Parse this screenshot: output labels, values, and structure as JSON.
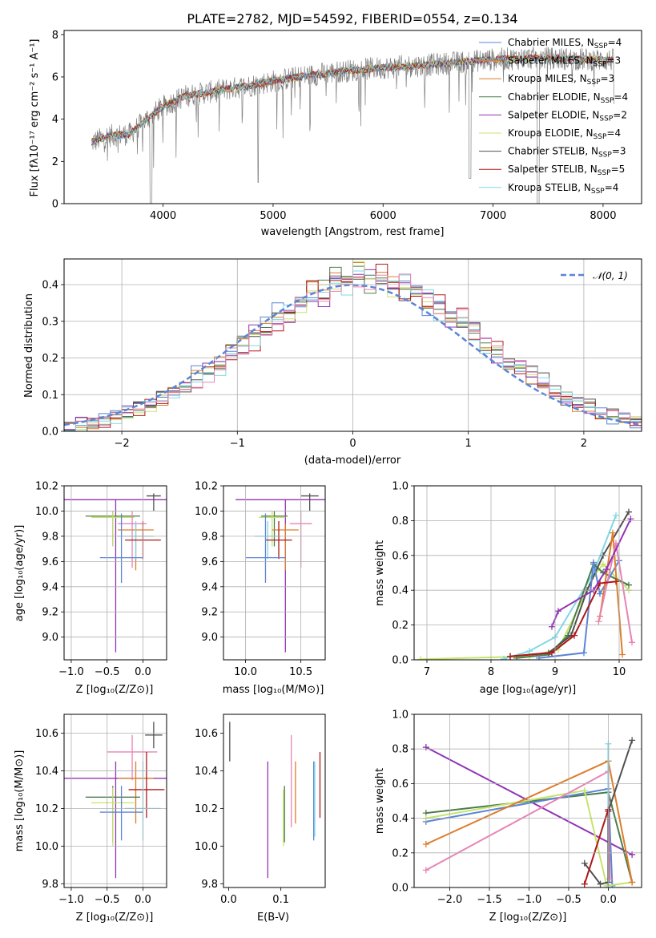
{
  "colors": {
    "blue": "#5b84d6",
    "orange": "#dd7d2c",
    "green": "#4b7d4b",
    "purple": "#9134b3",
    "yellowgreen": "#c7e36e",
    "darkgray": "#505050",
    "red": "#b01717",
    "cyan": "#7fd8e6",
    "pink": "#e783b5",
    "gray": "#808080"
  },
  "chart_data": [
    {
      "id": "spectrum",
      "type": "line",
      "title": "PLATE=2782, MJD=54592, FIBERID=0554, z=0.134",
      "xlabel": "wavelength [Angstrom, rest frame]",
      "ylabel": "Flux [fλ10⁻¹⁷ erg cm⁻² s⁻¹ A⁻¹]",
      "xlim": [
        3100,
        8350
      ],
      "ylim": [
        0,
        8.2
      ],
      "xticks": [
        "4000",
        "5000",
        "6000",
        "7000",
        "8000"
      ],
      "yticks": [
        "0",
        "2",
        "4",
        "6",
        "8"
      ],
      "legend_position": "top-right",
      "series": [
        {
          "name": "Chabrier MILES, N",
          "sub": "SSP",
          "suffix": "=4",
          "color": "blue"
        },
        {
          "name": "Salpeter MILES, N",
          "sub": "SSP",
          "suffix": "=3",
          "color": "orange"
        },
        {
          "name": "Kroupa MILES, N",
          "sub": "SSP",
          "suffix": "=3",
          "color": "orange"
        },
        {
          "name": "Chabrier ELODIE, N",
          "sub": "SSP",
          "suffix": "=4",
          "color": "green"
        },
        {
          "name": "Salpeter ELODIE, N",
          "sub": "SSP",
          "suffix": "=2",
          "color": "purple"
        },
        {
          "name": "Kroupa ELODIE, N",
          "sub": "SSP",
          "suffix": "=4",
          "color": "yellowgreen"
        },
        {
          "name": "Chabrier STELIB, N",
          "sub": "SSP",
          "suffix": "=3",
          "color": "darkgray"
        },
        {
          "name": "Salpeter STELIB, N",
          "sub": "SSP",
          "suffix": "=5",
          "color": "red"
        },
        {
          "name": "Kroupa STELIB, N",
          "sub": "SSP",
          "suffix": "=4",
          "color": "cyan"
        }
      ],
      "continuum": [
        [
          3350,
          2.9
        ],
        [
          3500,
          3.2
        ],
        [
          3700,
          3.3
        ],
        [
          3850,
          4.0
        ],
        [
          4000,
          4.6
        ],
        [
          4200,
          5.1
        ],
        [
          4500,
          5.35
        ],
        [
          4800,
          5.6
        ],
        [
          5000,
          5.8
        ],
        [
          5300,
          6.05
        ],
        [
          5600,
          6.25
        ],
        [
          5900,
          6.4
        ],
        [
          6200,
          6.5
        ],
        [
          6500,
          6.6
        ],
        [
          6800,
          6.75
        ],
        [
          7100,
          6.85
        ],
        [
          7400,
          6.9
        ],
        [
          7700,
          6.85
        ],
        [
          8000,
          6.8
        ],
        [
          8100,
          6.8
        ]
      ]
    },
    {
      "id": "residuals",
      "type": "bar",
      "xlabel": "(data-model)/error",
      "ylabel": "Normed distribution",
      "xlim": [
        -2.5,
        2.5
      ],
      "ylim": [
        0,
        0.47
      ],
      "xticks": [
        "−2",
        "−1",
        "0",
        "1",
        "2"
      ],
      "yticks": [
        "0.0",
        "0.1",
        "0.2",
        "0.3",
        "0.4"
      ],
      "legend_label": "𝒩(0, 1)",
      "legend_position": "top-right",
      "bin_width": 0.1
    },
    {
      "id": "age_vs_Z",
      "type": "scatter",
      "xlabel": "Z [log₁₀(Z/Z⊙)]",
      "ylabel": "age  [log₁₀(age/yr)]",
      "xlim": [
        -1.1,
        0.33
      ],
      "ylim": [
        8.82,
        10.2
      ],
      "xticks": [
        "−1.0",
        "−0.5",
        "0.0"
      ],
      "yticks": [
        "9.0",
        "9.2",
        "9.4",
        "9.6",
        "9.8",
        "10.0",
        "10.2"
      ],
      "points": [
        {
          "x": -0.38,
          "y": 10.09,
          "xerr": 0.72,
          "yerr": 0,
          "ylo": 8.88,
          "yhi": 10.09,
          "color": "purple"
        },
        {
          "x": 0.15,
          "y": 10.12,
          "xerr": 0.1,
          "ylo": 10.0,
          "yhi": 10.14,
          "color": "darkgray"
        },
        {
          "x": -0.42,
          "y": 9.96,
          "xerr": 0.38,
          "ylo": 9.72,
          "yhi": 10.0,
          "color": "green"
        },
        {
          "x": -0.42,
          "y": 9.95,
          "xerr": 0.3,
          "ylo": 9.72,
          "yhi": 10.0,
          "color": "yellowgreen"
        },
        {
          "x": -0.15,
          "y": 9.9,
          "xerr": 0.2,
          "ylo": 9.55,
          "yhi": 10.0,
          "color": "pink"
        },
        {
          "x": -0.1,
          "y": 9.85,
          "xerr": 0.25,
          "ylo": 9.53,
          "yhi": 9.9,
          "color": "orange"
        },
        {
          "x": -0.1,
          "y": 9.8,
          "xerr": 0.25,
          "ylo": 9.62,
          "yhi": 9.92,
          "color": "cyan"
        },
        {
          "x": 0.0,
          "y": 9.77,
          "xerr": 0.25,
          "ylo": 9.62,
          "yhi": 9.92,
          "color": "red"
        },
        {
          "x": -0.3,
          "y": 9.63,
          "xerr": 0.3,
          "ylo": 9.43,
          "yhi": 9.98,
          "color": "blue"
        }
      ]
    },
    {
      "id": "age_vs_mass",
      "type": "scatter",
      "xlabel": "mass [log₁₀(M/M⊙)]",
      "ylabel": "",
      "xlim": [
        9.8,
        10.72
      ],
      "ylim": [
        8.82,
        10.2
      ],
      "xticks": [
        "10.0",
        "10.5"
      ],
      "yticks": [
        "9.0",
        "9.2",
        "9.4",
        "9.6",
        "9.8",
        "10.0",
        "10.2"
      ],
      "points": [
        {
          "x": 10.36,
          "y": 10.09,
          "xerr": 0.45,
          "ylo": 8.88,
          "yhi": 10.09,
          "color": "purple"
        },
        {
          "x": 10.58,
          "y": 10.12,
          "xerr": 0.08,
          "ylo": 10.0,
          "yhi": 10.14,
          "color": "darkgray"
        },
        {
          "x": 10.26,
          "y": 9.96,
          "xerr": 0.12,
          "ylo": 9.72,
          "yhi": 10.0,
          "color": "green"
        },
        {
          "x": 10.24,
          "y": 9.95,
          "xerr": 0.12,
          "ylo": 9.72,
          "yhi": 10.0,
          "color": "yellowgreen"
        },
        {
          "x": 10.5,
          "y": 9.9,
          "xerr": 0.1,
          "ylo": 9.55,
          "yhi": 10.0,
          "color": "pink"
        },
        {
          "x": 10.36,
          "y": 9.85,
          "xerr": 0.12,
          "ylo": 9.53,
          "yhi": 9.9,
          "color": "orange"
        },
        {
          "x": 10.2,
          "y": 9.8,
          "xerr": 0.12,
          "ylo": 9.62,
          "yhi": 9.92,
          "color": "cyan"
        },
        {
          "x": 10.3,
          "y": 9.77,
          "xerr": 0.12,
          "ylo": 9.62,
          "yhi": 9.92,
          "color": "red"
        },
        {
          "x": 10.18,
          "y": 9.63,
          "xerr": 0.18,
          "ylo": 9.43,
          "yhi": 9.98,
          "color": "blue"
        }
      ]
    },
    {
      "id": "massweight_vs_age",
      "type": "line",
      "xlabel": "age  [log₁₀(age/yr)]",
      "ylabel": "mass weight",
      "xlim": [
        6.8,
        10.35
      ],
      "ylim": [
        0,
        1.0
      ],
      "xticks": [
        "7",
        "8",
        "9",
        "10"
      ],
      "yticks": [
        "0.0",
        "0.2",
        "0.4",
        "0.6",
        "0.8",
        "1.0"
      ],
      "series": [
        {
          "color": "yellowgreen",
          "x": [
            6.9,
            8.6,
            9.05,
            9.6,
            9.75,
            10.15
          ],
          "y": [
            0.003,
            0.02,
            0.06,
            0.48,
            0.55,
            0.4
          ]
        },
        {
          "color": "cyan",
          "x": [
            8.2,
            8.6,
            9.0,
            9.6,
            9.95
          ],
          "y": [
            0.005,
            0.05,
            0.13,
            0.5,
            0.83
          ]
        },
        {
          "color": "green",
          "x": [
            8.4,
            8.9,
            9.2,
            9.6,
            9.75,
            10.15
          ],
          "y": [
            0.01,
            0.03,
            0.14,
            0.55,
            0.5,
            0.43
          ]
        },
        {
          "color": "darkgray",
          "x": [
            8.3,
            8.9,
            9.25,
            9.5,
            9.75,
            10.15
          ],
          "y": [
            0.02,
            0.04,
            0.14,
            0.4,
            0.6,
            0.85
          ]
        },
        {
          "color": "blue",
          "x": [
            8.75,
            9.45,
            9.6,
            9.7,
            10.0
          ],
          "y": [
            0.01,
            0.04,
            0.56,
            0.38,
            0.57
          ]
        },
        {
          "color": "orange",
          "x": [
            9.7,
            9.9,
            10.05
          ],
          "y": [
            0.25,
            0.73,
            0.03
          ]
        },
        {
          "color": "pink",
          "x": [
            9.68,
            9.95,
            10.2
          ],
          "y": [
            0.22,
            0.67,
            0.1
          ]
        },
        {
          "color": "red",
          "x": [
            8.3,
            8.95,
            9.3,
            9.7,
            9.95
          ],
          "y": [
            0.02,
            0.04,
            0.14,
            0.44,
            0.45
          ]
        },
        {
          "color": "purple",
          "x": [
            8.95,
            9.05,
            9.6,
            9.8,
            10.18
          ],
          "y": [
            0.19,
            0.28,
            0.4,
            0.52,
            0.81
          ]
        }
      ]
    },
    {
      "id": "mass_vs_Z",
      "type": "scatter",
      "xlabel": "Z [log₁₀(Z/Z⊙)]",
      "ylabel": "mass [log₁₀(M/M⊙)]",
      "xlim": [
        -1.1,
        0.33
      ],
      "ylim": [
        9.78,
        10.7
      ],
      "xticks": [
        "−1.0",
        "−0.5",
        "0.0"
      ],
      "yticks": [
        "9.8",
        "10.0",
        "10.2",
        "10.4",
        "10.6"
      ],
      "points": [
        {
          "x": 0.15,
          "y": 10.59,
          "xerr": 0.12,
          "ylo": 10.52,
          "yhi": 10.66,
          "color": "darkgray"
        },
        {
          "x": -0.15,
          "y": 10.5,
          "xerr": 0.35,
          "ylo": 10.35,
          "yhi": 10.59,
          "color": "pink"
        },
        {
          "x": -0.38,
          "y": 10.36,
          "xerr": 0.72,
          "ylo": 9.83,
          "yhi": 10.45,
          "color": "purple"
        },
        {
          "x": -0.1,
          "y": 10.36,
          "xerr": 0.25,
          "ylo": 10.12,
          "yhi": 10.45,
          "color": "orange"
        },
        {
          "x": 0.05,
          "y": 10.3,
          "xerr": 0.25,
          "ylo": 10.15,
          "yhi": 10.5,
          "color": "red"
        },
        {
          "x": -0.42,
          "y": 10.26,
          "xerr": 0.38,
          "ylo": 10.02,
          "yhi": 10.32,
          "color": "green"
        },
        {
          "x": -0.42,
          "y": 10.23,
          "xerr": 0.3,
          "ylo": 10.0,
          "yhi": 10.31,
          "color": "yellowgreen"
        },
        {
          "x": 0.0,
          "y": 10.2,
          "xerr": 0.25,
          "ylo": 10.03,
          "yhi": 10.45,
          "color": "cyan"
        },
        {
          "x": -0.3,
          "y": 10.18,
          "xerr": 0.3,
          "ylo": 10.03,
          "yhi": 10.32,
          "color": "blue"
        }
      ]
    },
    {
      "id": "mass_vs_EBV",
      "type": "scatter",
      "xlabel": "E(B-V)",
      "ylabel": "",
      "xlim": [
        -0.01,
        0.185
      ],
      "ylim": [
        9.78,
        10.7
      ],
      "xticks": [
        "0.0",
        "0.1"
      ],
      "yticks": [
        "9.8",
        "10.0",
        "10.2",
        "10.4",
        "10.6"
      ],
      "points": [
        {
          "x": 0.002,
          "ylo": 10.45,
          "yhi": 10.66,
          "color": "darkgray"
        },
        {
          "x": 0.075,
          "ylo": 9.83,
          "yhi": 10.45,
          "color": "purple"
        },
        {
          "x": 0.105,
          "ylo": 10.0,
          "yhi": 10.3,
          "color": "yellowgreen"
        },
        {
          "x": 0.107,
          "ylo": 10.02,
          "yhi": 10.32,
          "color": "green"
        },
        {
          "x": 0.12,
          "ylo": 10.1,
          "yhi": 10.59,
          "color": "pink"
        },
        {
          "x": 0.128,
          "ylo": 10.12,
          "yhi": 10.45,
          "color": "orange"
        },
        {
          "x": 0.163,
          "ylo": 10.03,
          "yhi": 10.45,
          "color": "blue"
        },
        {
          "x": 0.165,
          "ylo": 10.05,
          "yhi": 10.45,
          "color": "cyan"
        },
        {
          "x": 0.175,
          "ylo": 10.15,
          "yhi": 10.5,
          "color": "red"
        }
      ]
    },
    {
      "id": "massweight_vs_Z",
      "type": "line",
      "xlabel": "Z [log₁₀(Z/Z⊙)]",
      "ylabel": "mass weight",
      "xlim": [
        -2.45,
        0.42
      ],
      "ylim": [
        0,
        1.0
      ],
      "xticks": [
        "−2.0",
        "−1.5",
        "−1.0",
        "−0.5",
        "0.0"
      ],
      "yticks": [
        "0.0",
        "0.2",
        "0.4",
        "0.6",
        "0.8",
        "1.0"
      ],
      "series": [
        {
          "color": "purple",
          "x": [
            -2.3,
            0.3
          ],
          "y": [
            0.81,
            0.19
          ]
        },
        {
          "color": "green",
          "x": [
            -2.3,
            0.0,
            0.3
          ],
          "y": [
            0.43,
            0.55,
            0.03
          ]
        },
        {
          "color": "blue",
          "x": [
            -2.3,
            0.0,
            0.05
          ],
          "y": [
            0.38,
            0.57,
            0.01
          ]
        },
        {
          "color": "yellowgreen",
          "x": [
            -2.3,
            -0.3,
            -0.02,
            0.3
          ],
          "y": [
            0.4,
            0.56,
            0.01,
            0.03
          ]
        },
        {
          "color": "orange",
          "x": [
            -2.3,
            0.0,
            0.3
          ],
          "y": [
            0.25,
            0.73,
            0.03
          ]
        },
        {
          "color": "pink",
          "x": [
            -2.3,
            0.0,
            0.02
          ],
          "y": [
            0.1,
            0.67,
            0.05
          ]
        },
        {
          "color": "cyan",
          "x": [
            0.0,
            0.0
          ],
          "y": [
            0.83,
            0.0
          ]
        },
        {
          "color": "darkgray",
          "x": [
            -0.3,
            -0.1,
            0.0,
            0.0,
            0.3
          ],
          "y": [
            0.14,
            0.02,
            0.03,
            0.44,
            0.85
          ]
        },
        {
          "color": "red",
          "x": [
            -0.3,
            0.0
          ],
          "y": [
            0.02,
            0.45
          ]
        }
      ]
    }
  ]
}
